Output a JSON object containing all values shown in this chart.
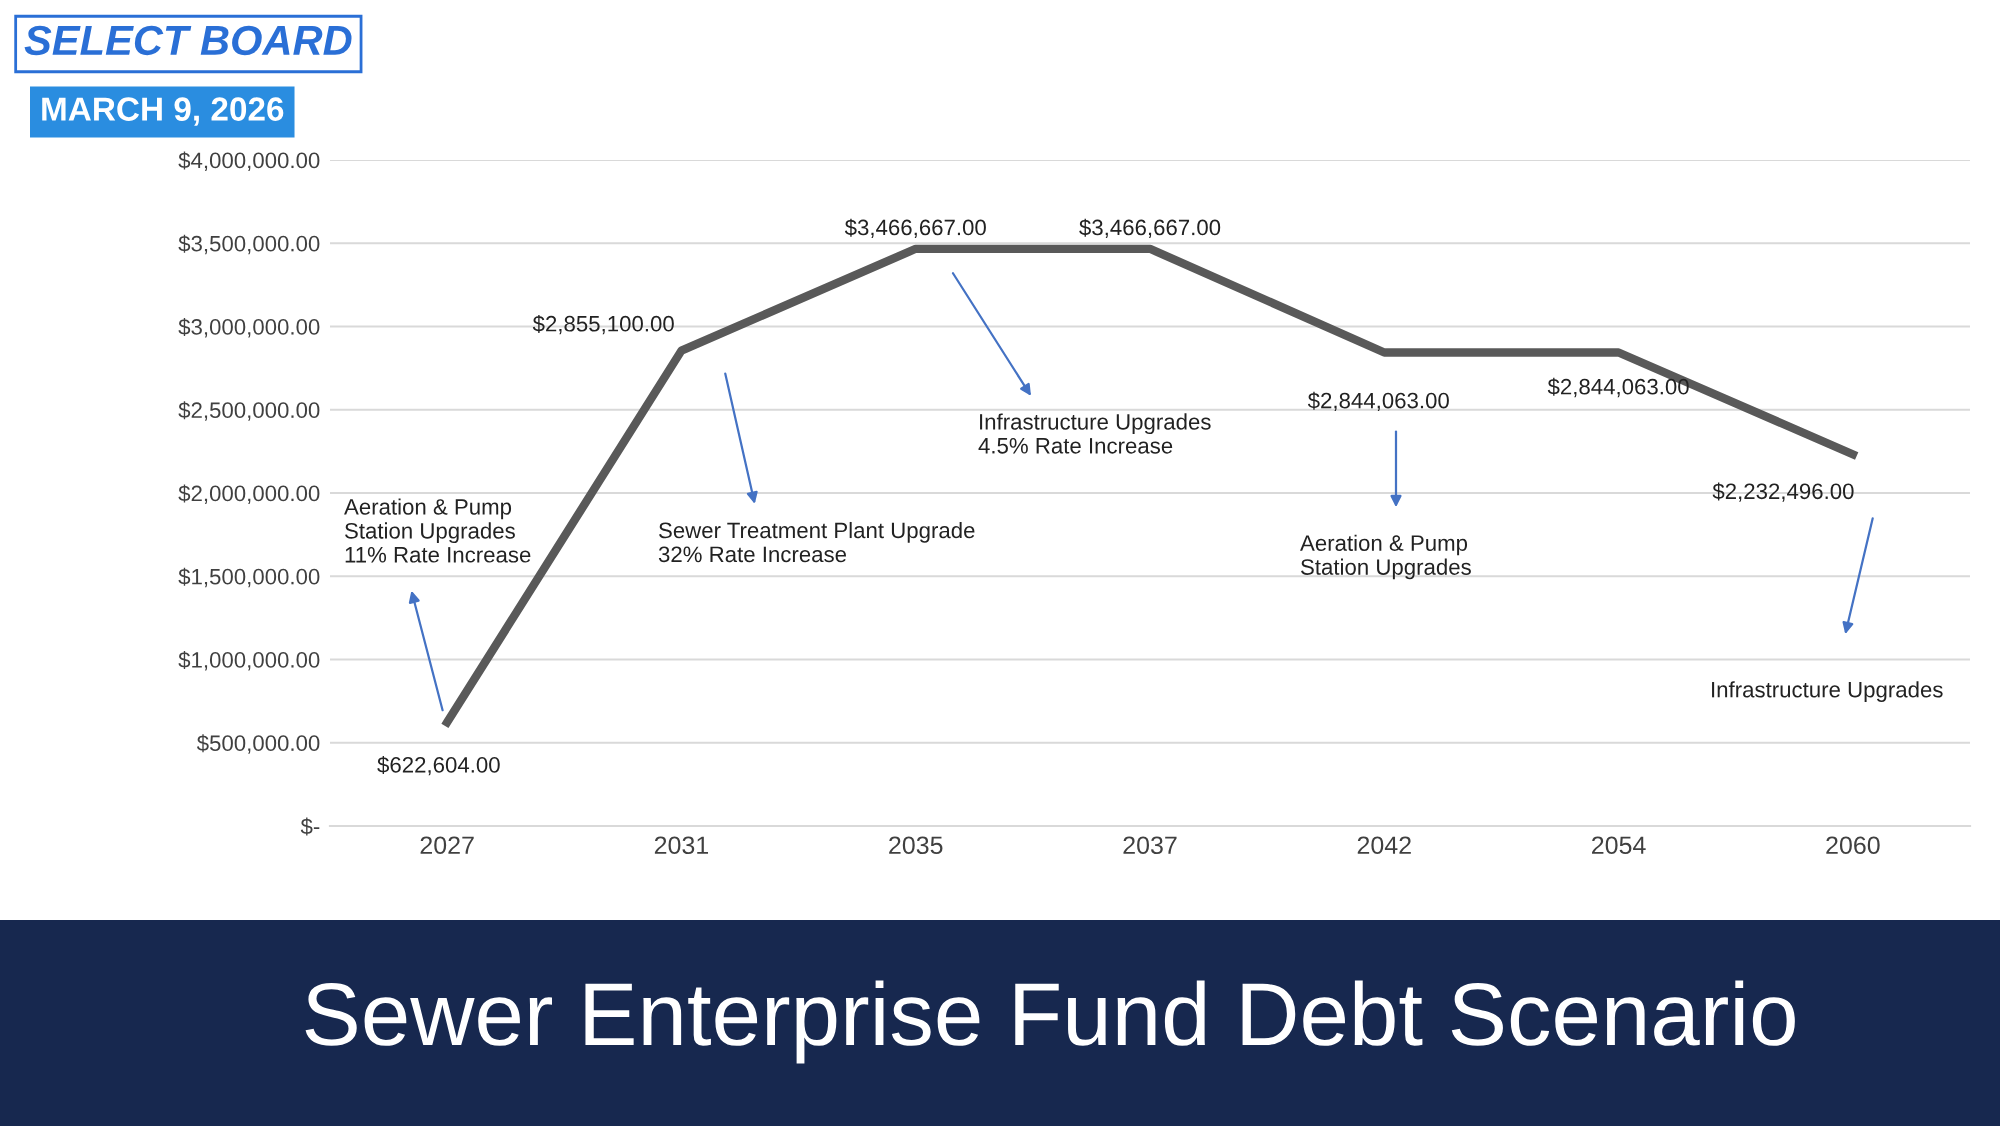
{
  "chart_data": {
    "type": "line",
    "title": "Sewer Enterprise Fund Debt Scenario",
    "categories": [
      "2027",
      "2031",
      "2035",
      "2037",
      "2042",
      "2054",
      "2060"
    ],
    "series": [
      {
        "color": "#595959",
        "values": [
          622604,
          2855100,
          3466667,
          3466667,
          2844063,
          2844063,
          2232496
        ],
        "value_labels": [
          "$622,604.00",
          "$2,855,100.00",
          "$3,466,667.00",
          "$3,466,667.00",
          "$2,844,063.00",
          "$2,844,063.00",
          "$2,232,496.00"
        ]
      }
    ],
    "ylim": [
      0,
      4000000
    ],
    "yticks": [
      {
        "value": 0,
        "label": "$-"
      },
      {
        "value": 500000,
        "label": "$500,000.00"
      },
      {
        "value": 1000000,
        "label": "$1,000,000.00"
      },
      {
        "value": 1500000,
        "label": "$1,500,000.00"
      },
      {
        "value": 2000000,
        "label": "$2,000,000.00"
      },
      {
        "value": 2500000,
        "label": "$2,500,000.00"
      },
      {
        "value": 3000000,
        "label": "$3,000,000.00"
      },
      {
        "value": 3500000,
        "label": "$3,500,000.00"
      },
      {
        "value": 4000000,
        "label": "$4,000,000.00"
      }
    ],
    "grid": "y",
    "legend": false,
    "marker": "none",
    "line_style": "solid",
    "annotations": [
      "Aeration & Pump\nStation Upgrades\n11% Rate Increase",
      "Sewer Treatment Plant Upgrade\n32% Rate Increase",
      "Infrastructure Upgrades\n4.5% Rate Increase",
      "Aeration & Pump\nStation Upgrades",
      "Infrastructure Upgrades",
      "SELECT BOARD",
      "MARCH 9, 2026"
    ]
  }
}
